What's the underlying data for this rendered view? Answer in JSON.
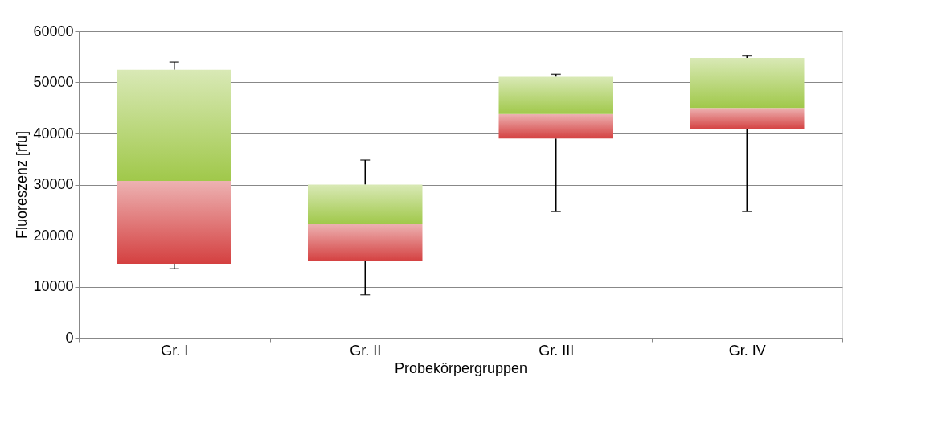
{
  "chart_data": {
    "type": "box",
    "xlabel": "Probekörpergruppen",
    "ylabel": "Fluoreszenz [rfu]",
    "categories": [
      "Gr. I",
      "Gr. II",
      "Gr. III",
      "Gr. IV"
    ],
    "series": [
      {
        "color": "#a0c84a",
        "colors": [
          "#d44040",
          "#d44040",
          "#d44040",
          "#d44040"
        ],
        "boxes": [
          {
            "low": 13500,
            "q1": 14500,
            "median": 30700,
            "q3": 52500,
            "high": 54000
          },
          {
            "low": 8400,
            "q1": 15000,
            "median": 22300,
            "q3": 30000,
            "high": 34800
          },
          {
            "low": 24700,
            "q1": 39000,
            "median": 43800,
            "q3": 51100,
            "high": 51600
          },
          {
            "low": 24700,
            "q1": 40800,
            "median": 45000,
            "q3": 54800,
            "high": 55200
          }
        ]
      }
    ],
    "ylim": [
      0,
      60000
    ],
    "yticks": [
      0,
      10000,
      20000,
      30000,
      40000,
      50000,
      60000
    ],
    "grid": "y"
  }
}
